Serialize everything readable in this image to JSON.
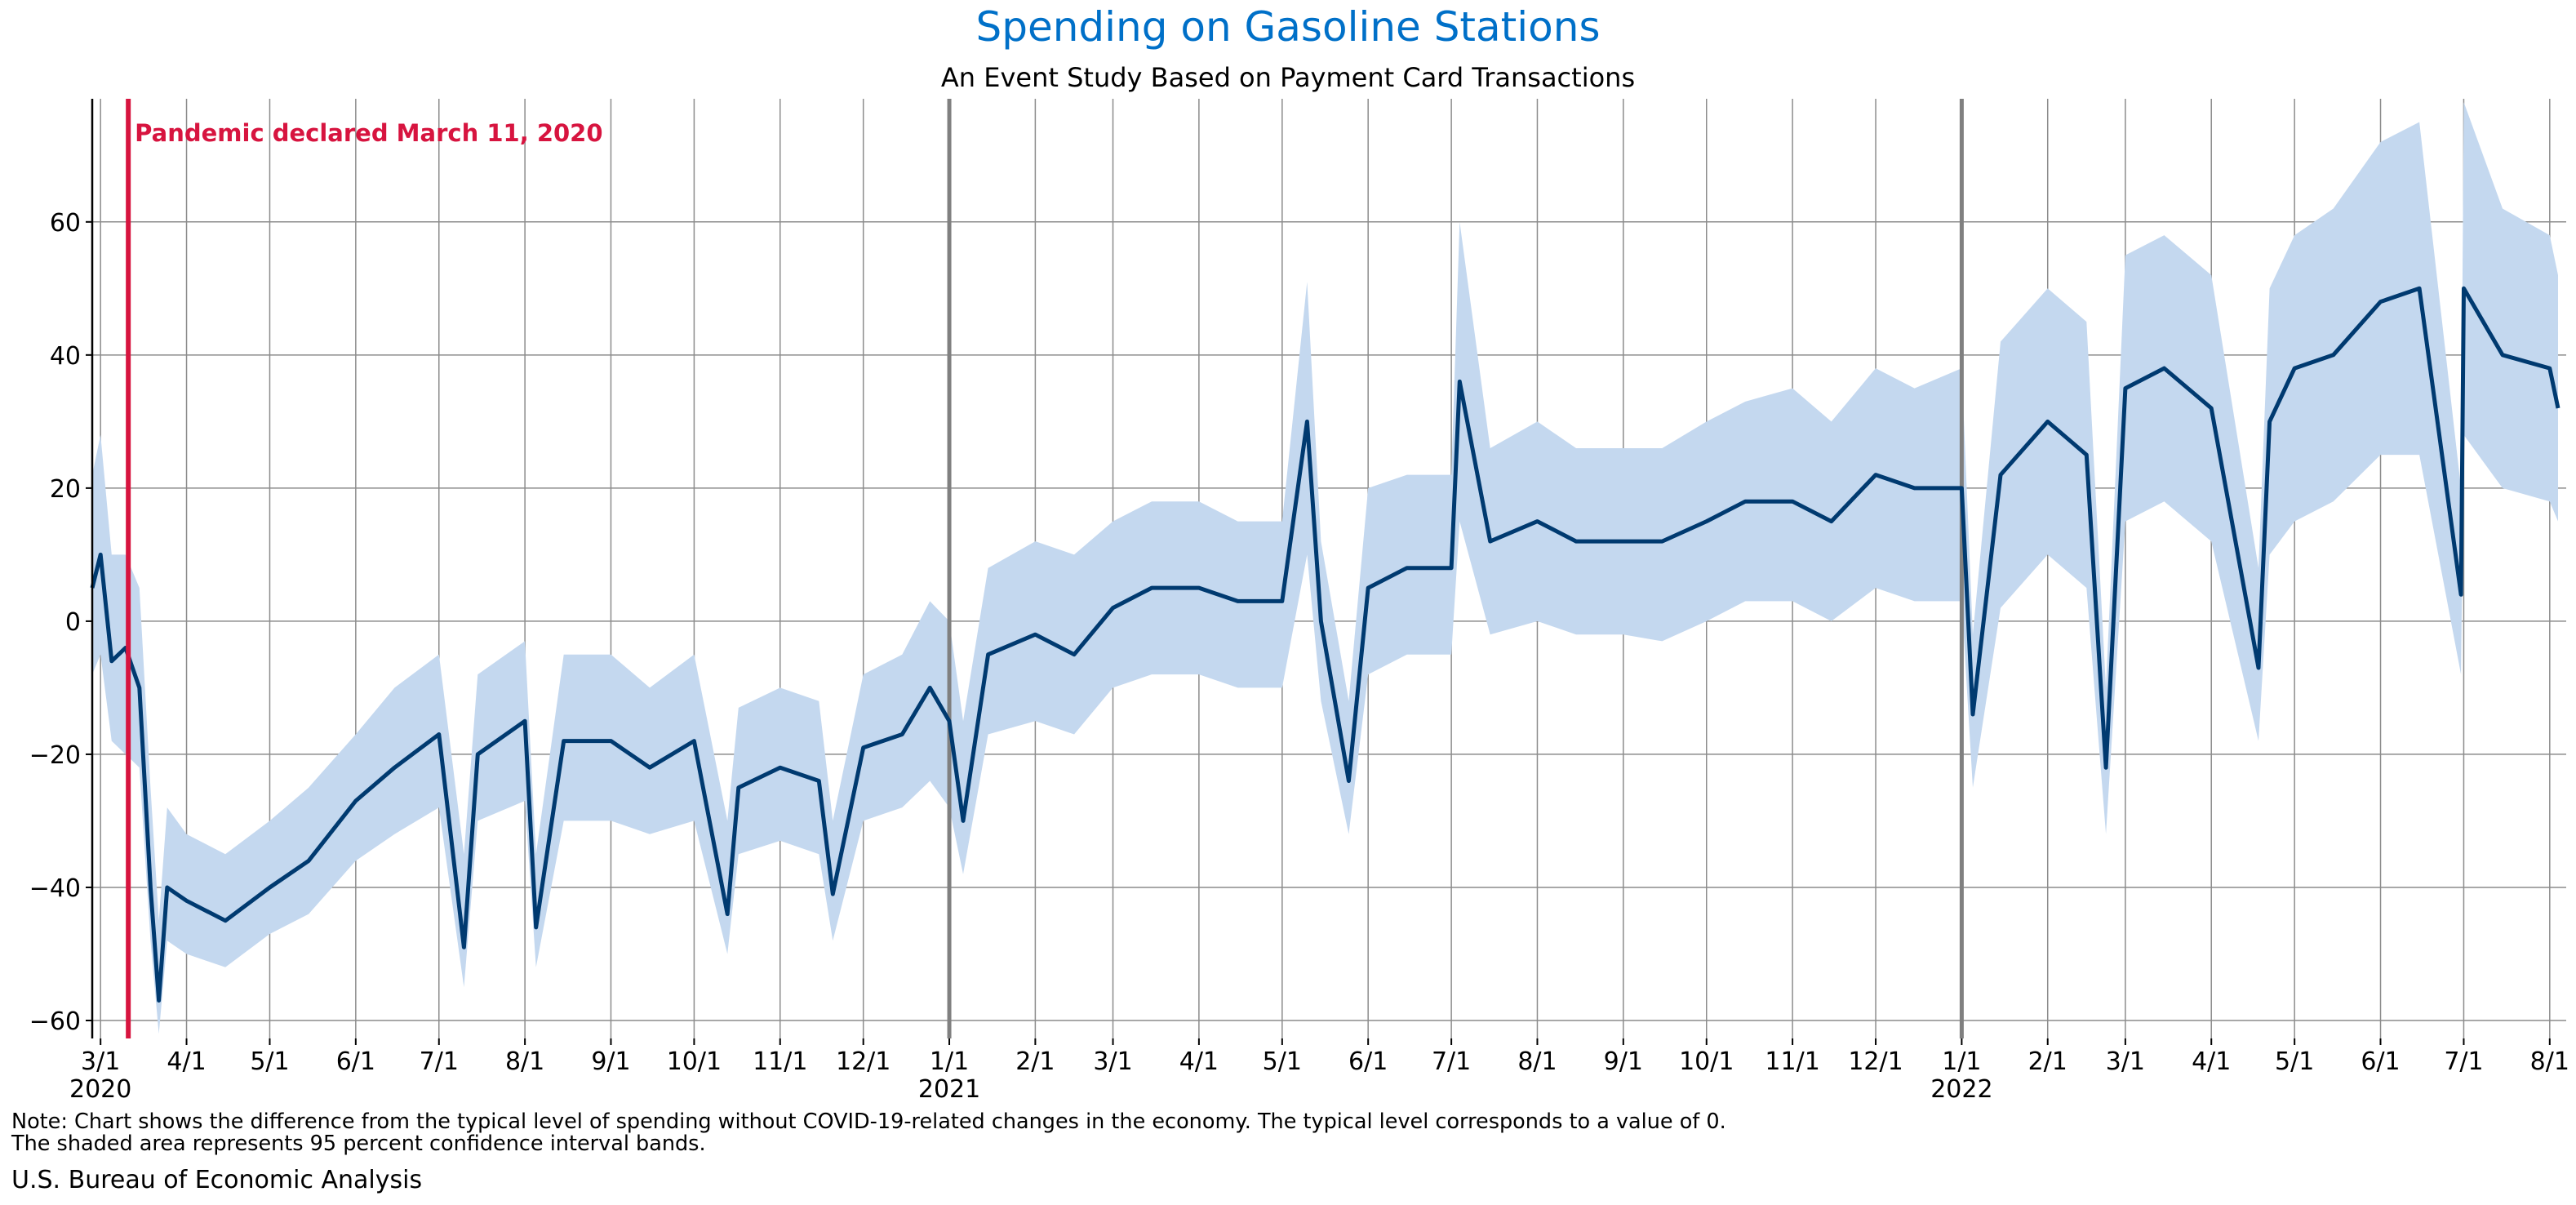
{
  "chart_data": {
    "type": "line",
    "title": "Spending on Gasoline Stations",
    "subtitle": "An Event Study Based on Payment Card Transactions",
    "xlabel": "",
    "ylabel": "",
    "ylim": [
      -62.7,
      78.5
    ],
    "xlim": [
      "2020-02-27",
      "2022-08-04"
    ],
    "yticks": [
      -60,
      -40,
      -20,
      0,
      20,
      40,
      60
    ],
    "xticks": [
      {
        "date": "2020-03-01",
        "label": "3/1",
        "year": "2020"
      },
      {
        "date": "2020-04-01",
        "label": "4/1"
      },
      {
        "date": "2020-05-01",
        "label": "5/1"
      },
      {
        "date": "2020-06-01",
        "label": "6/1"
      },
      {
        "date": "2020-07-01",
        "label": "7/1"
      },
      {
        "date": "2020-08-01",
        "label": "8/1"
      },
      {
        "date": "2020-09-01",
        "label": "9/1"
      },
      {
        "date": "2020-10-01",
        "label": "10/1"
      },
      {
        "date": "2020-11-01",
        "label": "11/1"
      },
      {
        "date": "2020-12-01",
        "label": "12/1"
      },
      {
        "date": "2021-01-01",
        "label": "1/1",
        "year": "2021"
      },
      {
        "date": "2021-02-01",
        "label": "2/1"
      },
      {
        "date": "2021-03-01",
        "label": "3/1"
      },
      {
        "date": "2021-04-01",
        "label": "4/1"
      },
      {
        "date": "2021-05-01",
        "label": "5/1"
      },
      {
        "date": "2021-06-01",
        "label": "6/1"
      },
      {
        "date": "2021-07-01",
        "label": "7/1"
      },
      {
        "date": "2021-08-01",
        "label": "8/1"
      },
      {
        "date": "2021-09-01",
        "label": "9/1"
      },
      {
        "date": "2021-10-01",
        "label": "10/1"
      },
      {
        "date": "2021-11-01",
        "label": "11/1"
      },
      {
        "date": "2021-12-01",
        "label": "12/1"
      },
      {
        "date": "2022-01-01",
        "label": "1/1",
        "year": "2022"
      },
      {
        "date": "2022-02-01",
        "label": "2/1"
      },
      {
        "date": "2022-03-01",
        "label": "3/1"
      },
      {
        "date": "2022-04-01",
        "label": "4/1"
      },
      {
        "date": "2022-05-01",
        "label": "5/1"
      },
      {
        "date": "2022-06-01",
        "label": "6/1"
      },
      {
        "date": "2022-07-01",
        "label": "7/1"
      },
      {
        "date": "2022-08-01",
        "label": "8/1"
      }
    ],
    "grid": true,
    "event": {
      "date": "2020-03-11",
      "label": "Pandemic declared March 11, 2020"
    },
    "series": [
      {
        "x": [
          "2020-02-27",
          "2020-03-01",
          "2020-03-05",
          "2020-03-10",
          "2020-03-15",
          "2020-03-19",
          "2020-03-22",
          "2020-03-25",
          "2020-04-01",
          "2020-04-15",
          "2020-05-01",
          "2020-05-15",
          "2020-06-01",
          "2020-06-15",
          "2020-07-01",
          "2020-07-10",
          "2020-07-15",
          "2020-08-01",
          "2020-08-05",
          "2020-08-15",
          "2020-09-01",
          "2020-09-15",
          "2020-10-01",
          "2020-10-13",
          "2020-10-17",
          "2020-11-01",
          "2020-11-15",
          "2020-11-20",
          "2020-12-01",
          "2020-12-15",
          "2020-12-25",
          "2021-01-01",
          "2021-01-06",
          "2021-01-15",
          "2021-02-01",
          "2021-02-15",
          "2021-03-01",
          "2021-03-15",
          "2021-04-01",
          "2021-04-15",
          "2021-05-01",
          "2021-05-10",
          "2021-05-15",
          "2021-05-25",
          "2021-06-01",
          "2021-06-15",
          "2021-07-01",
          "2021-07-04",
          "2021-07-15",
          "2021-08-01",
          "2021-08-15",
          "2021-09-01",
          "2021-09-15",
          "2021-10-01",
          "2021-10-15",
          "2021-11-01",
          "2021-11-15",
          "2021-12-01",
          "2021-12-15",
          "2022-01-01",
          "2022-01-05",
          "2022-01-15",
          "2022-02-01",
          "2022-02-15",
          "2022-02-22",
          "2022-03-01",
          "2022-03-15",
          "2022-04-01",
          "2022-04-18",
          "2022-04-22",
          "2022-05-01",
          "2022-05-15",
          "2022-06-01",
          "2022-06-15",
          "2022-06-30",
          "2022-07-01",
          "2022-07-15",
          "2022-08-01",
          "2022-08-04"
        ],
        "y": [
          5,
          10,
          -6,
          -4,
          -10,
          -40,
          -57,
          -40,
          -42,
          -45,
          -40,
          -36,
          -27,
          -22,
          -17,
          -49,
          -20,
          -15,
          -46,
          -18,
          -18,
          -22,
          -18,
          -44,
          -25,
          -22,
          -24,
          -41,
          -19,
          -17,
          -10,
          -15,
          -30,
          -5,
          -2,
          -5,
          2,
          5,
          5,
          3,
          3,
          30,
          0,
          -24,
          5,
          8,
          8,
          36,
          12,
          15,
          12,
          12,
          12,
          15,
          18,
          18,
          15,
          22,
          20,
          20,
          -14,
          22,
          30,
          25,
          -22,
          35,
          38,
          32,
          -7,
          30,
          38,
          40,
          48,
          50,
          4,
          50,
          40,
          38,
          32
        ],
        "lower": [
          -8,
          -5,
          -18,
          -20,
          -22,
          -48,
          -62,
          -48,
          -50,
          -52,
          -47,
          -44,
          -36,
          -32,
          -28,
          -55,
          -30,
          -27,
          -52,
          -30,
          -30,
          -32,
          -30,
          -50,
          -35,
          -33,
          -35,
          -48,
          -30,
          -28,
          -24,
          -28,
          -38,
          -17,
          -15,
          -17,
          -10,
          -8,
          -8,
          -10,
          -10,
          10,
          -12,
          -32,
          -8,
          -5,
          -5,
          15,
          -2,
          0,
          -2,
          -2,
          -3,
          0,
          3,
          3,
          0,
          5,
          3,
          3,
          -25,
          2,
          10,
          5,
          -32,
          15,
          18,
          12,
          -18,
          10,
          15,
          18,
          25,
          25,
          -8,
          28,
          20,
          18,
          15
        ],
        "upper": [
          22,
          28,
          10,
          10,
          5,
          -25,
          -45,
          -28,
          -32,
          -35,
          -30,
          -25,
          -17,
          -10,
          -5,
          -35,
          -8,
          -3,
          -35,
          -5,
          -5,
          -10,
          -5,
          -30,
          -13,
          -10,
          -12,
          -30,
          -8,
          -5,
          3,
          0,
          -15,
          8,
          12,
          10,
          15,
          18,
          18,
          15,
          15,
          51,
          12,
          -12,
          20,
          22,
          22,
          60,
          26,
          30,
          26,
          26,
          26,
          30,
          33,
          35,
          30,
          38,
          35,
          38,
          -2,
          42,
          50,
          45,
          -10,
          55,
          58,
          52,
          8,
          50,
          58,
          62,
          72,
          75,
          20,
          78,
          62,
          58,
          52
        ]
      }
    ],
    "colors": {
      "line": "#003A70",
      "band": "#C4D8EF",
      "event": "#D7143F",
      "title": "#0070C8",
      "grid": "#8C8C8C",
      "year_line": "#808080"
    },
    "note": "Note: Chart shows the difference from the typical level of spending without COVID-19-related changes in the economy. The typical level corresponds to a value of 0.",
    "note2": "The shaded area represents 95 percent confidence interval bands.",
    "source": "U.S. Bureau of Economic Analysis"
  }
}
